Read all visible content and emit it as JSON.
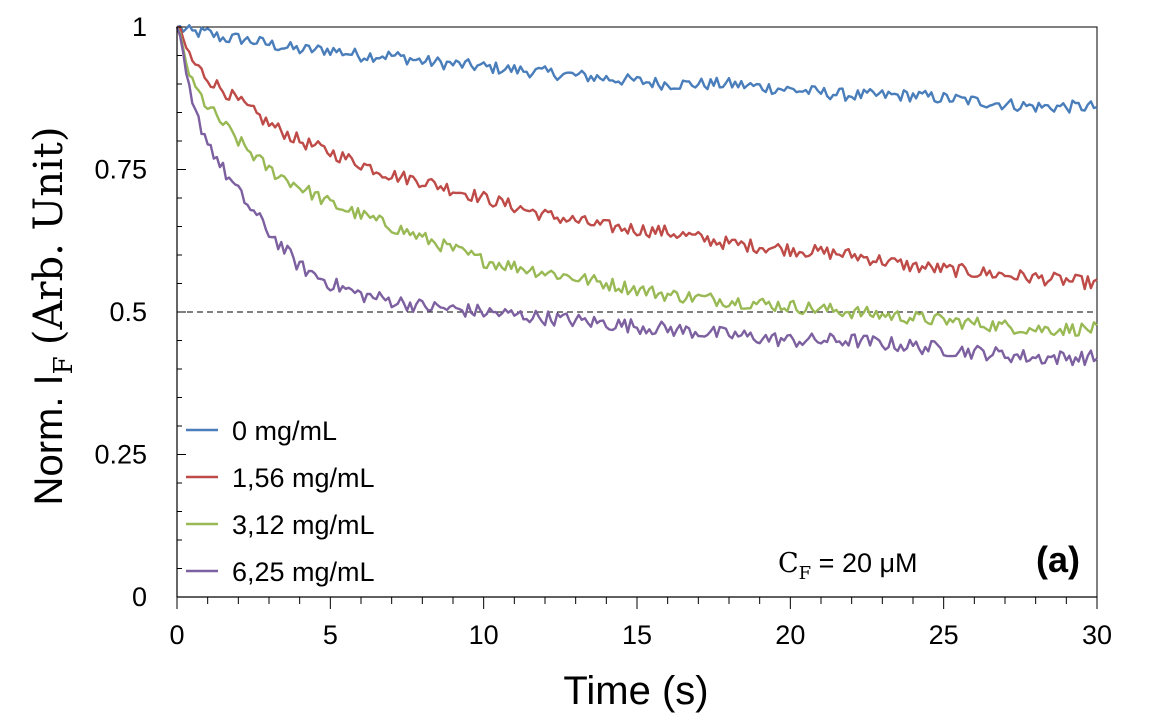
{
  "chart_data": {
    "type": "line",
    "title": "",
    "xlabel": "Time (s)",
    "ylabel": "Norm. I",
    "ylabel_sub": "F",
    "ylabel_suffix": "(Arb. Unit)",
    "xlim": [
      0,
      30
    ],
    "ylim": [
      0,
      1
    ],
    "x_ticks": [
      0,
      5,
      10,
      15,
      20,
      25,
      30
    ],
    "x_tick_labels": [
      "0",
      "5",
      "10",
      "15",
      "20",
      "25",
      "30"
    ],
    "y_ticks": [
      0,
      0.25,
      0.5,
      0.75,
      1
    ],
    "y_tick_labels": [
      "0",
      "0.25",
      "0.5",
      "0.75",
      "1"
    ],
    "grid": false,
    "legend_position": "bottom-left",
    "reference_line": {
      "y": 0.5,
      "style": "dashed"
    },
    "x": [
      0,
      0.5,
      1,
      1.5,
      2,
      3,
      4,
      5,
      6,
      7,
      8,
      10,
      12,
      14,
      16,
      18,
      20,
      22,
      24,
      26,
      28,
      30
    ],
    "series": [
      {
        "name": "0 mg/mL",
        "color": "#4a7ebb",
        "values": [
          1.0,
          0.99,
          0.99,
          0.98,
          0.98,
          0.97,
          0.96,
          0.96,
          0.95,
          0.95,
          0.94,
          0.93,
          0.92,
          0.91,
          0.9,
          0.9,
          0.89,
          0.88,
          0.88,
          0.87,
          0.86,
          0.86
        ]
      },
      {
        "name": "1,56 mg/mL",
        "color": "#be4b48",
        "values": [
          1.0,
          0.94,
          0.91,
          0.89,
          0.87,
          0.83,
          0.8,
          0.78,
          0.76,
          0.74,
          0.73,
          0.7,
          0.67,
          0.65,
          0.64,
          0.62,
          0.61,
          0.6,
          0.58,
          0.57,
          0.56,
          0.55
        ]
      },
      {
        "name": "3,12 mg/mL",
        "color": "#98b954",
        "values": [
          1.0,
          0.9,
          0.86,
          0.83,
          0.8,
          0.75,
          0.72,
          0.69,
          0.67,
          0.65,
          0.63,
          0.59,
          0.57,
          0.55,
          0.53,
          0.52,
          0.51,
          0.5,
          0.49,
          0.48,
          0.47,
          0.47
        ]
      },
      {
        "name": "6,25 mg/mL",
        "color": "#7d60a0",
        "values": [
          1.0,
          0.86,
          0.8,
          0.75,
          0.71,
          0.64,
          0.58,
          0.55,
          0.53,
          0.52,
          0.51,
          0.5,
          0.49,
          0.48,
          0.47,
          0.46,
          0.45,
          0.45,
          0.44,
          0.43,
          0.42,
          0.42
        ]
      }
    ],
    "annotations": {
      "conc_label": "C",
      "conc_sub": "F",
      "conc_value": " = 20 μM",
      "panel_label": "(a)"
    }
  }
}
